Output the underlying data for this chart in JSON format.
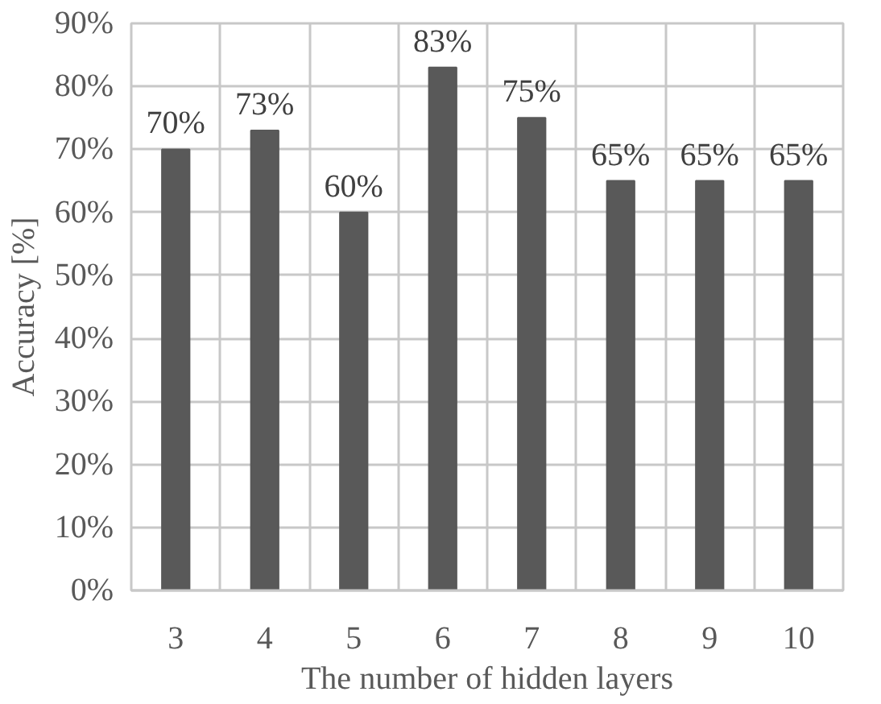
{
  "chart_data": {
    "type": "bar",
    "xlabel": "The number of hidden layers",
    "ylabel": "Accuracy [%]",
    "categories": [
      "3",
      "4",
      "5",
      "6",
      "7",
      "8",
      "9",
      "10"
    ],
    "values": [
      70,
      73,
      60,
      83,
      75,
      65,
      65,
      65
    ],
    "color": "#595959",
    "value_labels": [
      "70%",
      "73%",
      "60%",
      "83%",
      "75%",
      "65%",
      "65%",
      "65%"
    ],
    "ylim": [
      0,
      90
    ],
    "yticks": [
      {
        "value": 0,
        "label": "0%"
      },
      {
        "value": 10,
        "label": "10%"
      },
      {
        "value": 20,
        "label": "20%"
      },
      {
        "value": 30,
        "label": "30%"
      },
      {
        "value": 40,
        "label": "40%"
      },
      {
        "value": 50,
        "label": "50%"
      },
      {
        "value": 60,
        "label": "60%"
      },
      {
        "value": 70,
        "label": "70%"
      },
      {
        "value": 80,
        "label": "80%"
      },
      {
        "value": 90,
        "label": "90%"
      }
    ],
    "grid": true
  }
}
